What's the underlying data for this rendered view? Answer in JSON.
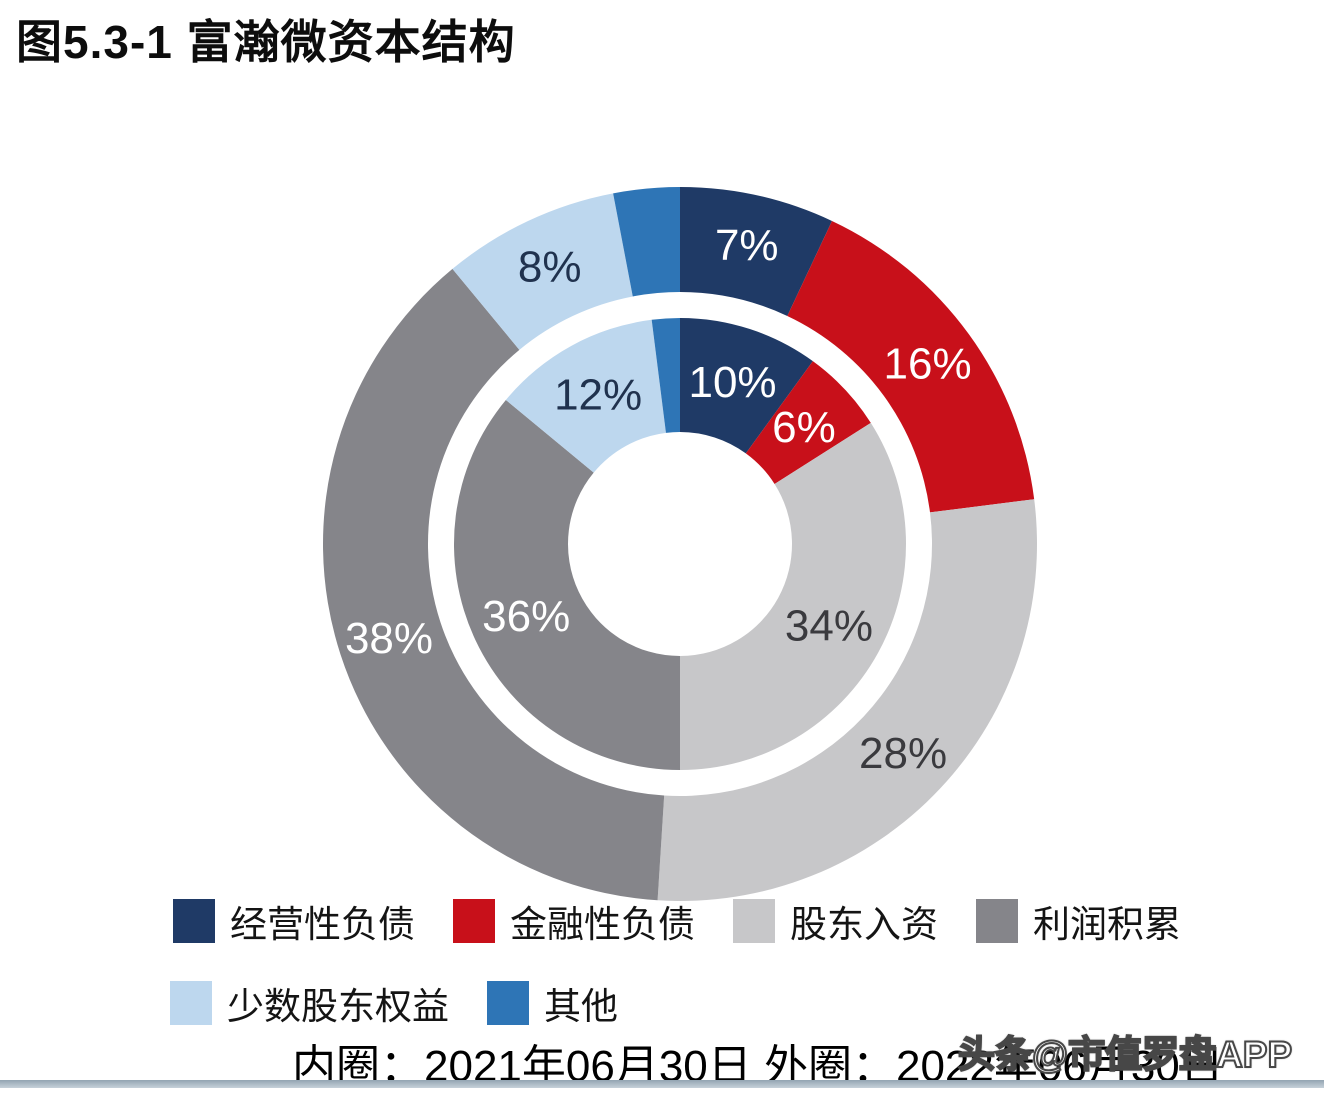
{
  "title": "图5.3-1 富瀚微资本结构",
  "footer": "内圈：2021年06月30日 外圈：2022年06月30日",
  "watermark": "头条@市值罗盘APP",
  "chart_data": {
    "type": "donut",
    "variant": "nested-two-ring",
    "title": "图5.3-1 富瀚微资本结构",
    "categories": [
      "经营性负债",
      "金融性负债",
      "股东入资",
      "利润积累",
      "少数股东权益",
      "其他"
    ],
    "colors": [
      "#1f3a66",
      "#c8101a",
      "#c7c7c9",
      "#85858a",
      "#bdd7ee",
      "#2e75b6"
    ],
    "label_colors": [
      "#ffffff",
      "#ffffff",
      "#3a3a3e",
      "#ffffff",
      "#20324e",
      "#ffffff"
    ],
    "series": [
      {
        "name": "内圈",
        "ring": "inner",
        "date": "2021年06月30日",
        "values": [
          10,
          6,
          34,
          36,
          12,
          2
        ],
        "labels": [
          "10%",
          "6%",
          "34%",
          "36%",
          "12%",
          ""
        ]
      },
      {
        "name": "外圈",
        "ring": "outer",
        "date": "2022年06月30日",
        "values": [
          7,
          16,
          28,
          38,
          8,
          3
        ],
        "labels": [
          "7%",
          "16%",
          "28%",
          "38%",
          "8%",
          ""
        ]
      }
    ],
    "start_angle_deg": 0,
    "direction": "clockwise",
    "legend_position": "bottom",
    "legend_rows": [
      [
        0,
        1,
        2,
        3
      ],
      [
        4,
        5
      ]
    ]
  }
}
